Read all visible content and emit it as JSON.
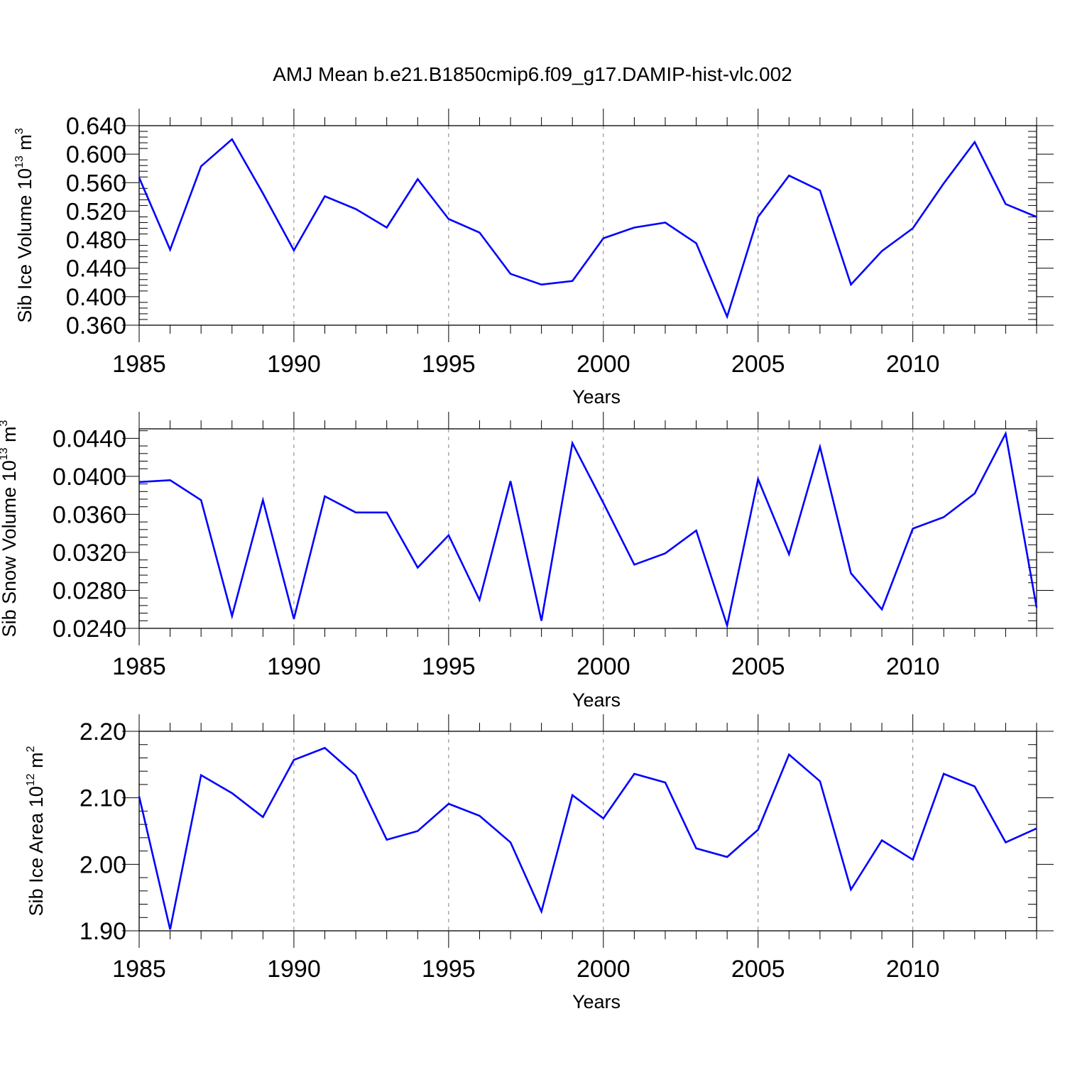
{
  "title": "AMJ Mean b.e21.B1850cmip6.f09_g17.DAMIP-hist-vlc.002",
  "colors": {
    "series": "#0000ff",
    "axes": "#000000",
    "grid": "#7f7f7f"
  },
  "chart_data": [
    {
      "type": "line",
      "ylabel": {
        "text": "Sib Ice Volume 10",
        "exp": "13",
        "unit": " m",
        "unit_exp": "3"
      },
      "xlabel": "Years",
      "xlim": [
        1985,
        2014
      ],
      "ylim": [
        0.36,
        0.64
      ],
      "x_ticks": [
        1985,
        1990,
        1995,
        2000,
        2005,
        2010
      ],
      "y_ticks": [
        "0.360",
        "0.400",
        "0.440",
        "0.480",
        "0.520",
        "0.560",
        "0.600",
        "0.640"
      ],
      "grid": "vertical dashed at major x ticks",
      "x": [
        1985,
        1986,
        1987,
        1988,
        1989,
        1990,
        1991,
        1992,
        1993,
        1994,
        1995,
        1996,
        1997,
        1998,
        1999,
        2000,
        2001,
        2002,
        2003,
        2004,
        2005,
        2006,
        2007,
        2008,
        2009,
        2010,
        2011,
        2012,
        2013,
        2014
      ],
      "y": [
        0.567,
        0.466,
        0.583,
        0.621,
        0.545,
        0.465,
        0.541,
        0.523,
        0.497,
        0.565,
        0.509,
        0.49,
        0.432,
        0.417,
        0.422,
        0.482,
        0.497,
        0.504,
        0.475,
        0.372,
        0.512,
        0.57,
        0.549,
        0.417,
        0.464,
        0.496,
        0.559,
        0.617,
        0.53,
        0.512
      ]
    },
    {
      "type": "line",
      "ylabel": {
        "text": "Sib Snow Volume 10",
        "exp": "13",
        "unit": " m",
        "unit_exp": "3"
      },
      "xlabel": "Years",
      "xlim": [
        1985,
        2014
      ],
      "ylim": [
        0.024,
        0.045
      ],
      "x_ticks": [
        1985,
        1990,
        1995,
        2000,
        2005,
        2010
      ],
      "y_ticks": [
        "0.0240",
        "0.0280",
        "0.0320",
        "0.0360",
        "0.0400",
        "0.0440"
      ],
      "y_tick_values": [
        0.024,
        0.028,
        0.032,
        0.036,
        0.04,
        0.044
      ],
      "grid": "vertical dashed at major x ticks",
      "x": [
        1985,
        1986,
        1987,
        1988,
        1989,
        1990,
        1991,
        1992,
        1993,
        1994,
        1995,
        1996,
        1997,
        1998,
        1999,
        2000,
        2001,
        2002,
        2003,
        2004,
        2005,
        2006,
        2007,
        2008,
        2009,
        2010,
        2011,
        2012,
        2013,
        2014
      ],
      "y": [
        0.0394,
        0.0396,
        0.0375,
        0.0253,
        0.0375,
        0.025,
        0.0379,
        0.0362,
        0.0362,
        0.0304,
        0.0338,
        0.027,
        0.0395,
        0.0248,
        0.0435,
        0.0372,
        0.0307,
        0.0319,
        0.0343,
        0.0243,
        0.0397,
        0.0318,
        0.0431,
        0.0298,
        0.026,
        0.0345,
        0.0357,
        0.0382,
        0.0445,
        0.0262
      ]
    },
    {
      "type": "line",
      "ylabel": {
        "text": "Sib Ice Area 10",
        "exp": "12",
        "unit": " m",
        "unit_exp": "2"
      },
      "xlabel": "Years",
      "xlim": [
        1985,
        2014
      ],
      "ylim": [
        1.9,
        2.2
      ],
      "x_ticks": [
        1985,
        1990,
        1995,
        2000,
        2005,
        2010
      ],
      "y_ticks": [
        "1.90",
        "2.00",
        "2.10",
        "2.20"
      ],
      "grid": "vertical dashed at major x ticks",
      "x": [
        1985,
        1986,
        1987,
        1988,
        1989,
        1990,
        1991,
        1992,
        1993,
        1994,
        1995,
        1996,
        1997,
        1998,
        1999,
        2000,
        2001,
        2002,
        2003,
        2004,
        2005,
        2006,
        2007,
        2008,
        2009,
        2010,
        2011,
        2012,
        2013,
        2014
      ],
      "y": [
        2.102,
        1.902,
        2.134,
        2.107,
        2.071,
        2.157,
        2.175,
        2.134,
        2.037,
        2.05,
        2.091,
        2.073,
        2.033,
        1.929,
        2.104,
        2.069,
        2.136,
        2.123,
        2.024,
        2.011,
        2.052,
        2.165,
        2.125,
        1.962,
        2.036,
        2.007,
        2.136,
        2.117,
        2.033,
        2.054
      ]
    }
  ]
}
